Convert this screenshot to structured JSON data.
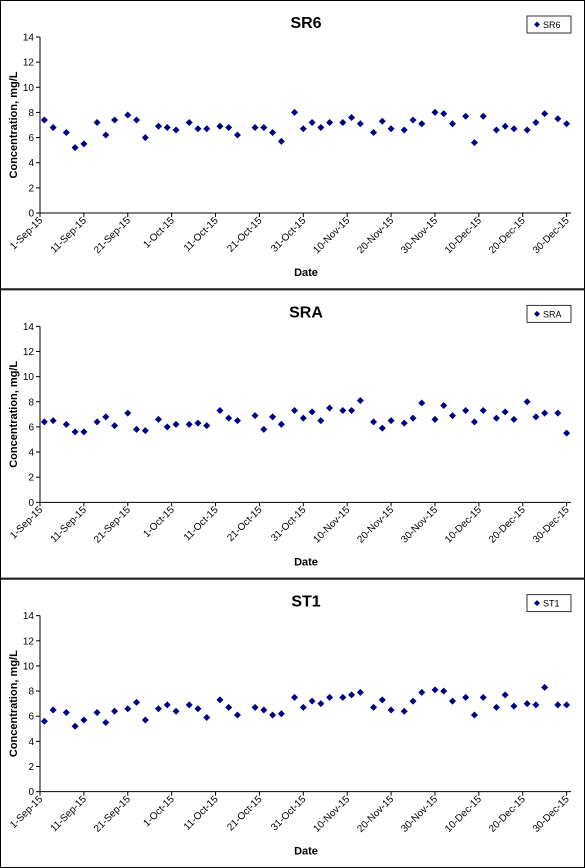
{
  "chart_data": [
    {
      "type": "scatter",
      "title": "SR6",
      "xlabel": "Date",
      "ylabel": "Concentration, mg/L",
      "x": [
        "2-Sep-15",
        "4-Sep-15",
        "7-Sep-15",
        "9-Sep-15",
        "11-Sep-15",
        "14-Sep-15",
        "16-Sep-15",
        "18-Sep-15",
        "21-Sep-15",
        "23-Sep-15",
        "25-Sep-15",
        "28-Sep-15",
        "30-Sep-15",
        "2-Oct-15",
        "5-Oct-15",
        "7-Oct-15",
        "9-Oct-15",
        "12-Oct-15",
        "14-Oct-15",
        "16-Oct-15",
        "20-Oct-15",
        "22-Oct-15",
        "24-Oct-15",
        "26-Oct-15",
        "29-Oct-15",
        "31-Oct-15",
        "2-Nov-15",
        "4-Nov-15",
        "6-Nov-15",
        "9-Nov-15",
        "11-Nov-15",
        "13-Nov-15",
        "16-Nov-15",
        "18-Nov-15",
        "20-Nov-15",
        "23-Nov-15",
        "25-Nov-15",
        "27-Nov-15",
        "30-Nov-15",
        "2-Dec-15",
        "4-Dec-15",
        "7-Dec-15",
        "9-Dec-15",
        "11-Dec-15",
        "14-Dec-15",
        "16-Dec-15",
        "18-Dec-15",
        "21-Dec-15",
        "23-Dec-15",
        "25-Dec-15",
        "28-Dec-15",
        "30-Dec-15"
      ],
      "series": [
        {
          "name": "SR6",
          "color": "#000080",
          "values": [
            7.4,
            6.8,
            6.4,
            5.2,
            5.5,
            7.2,
            6.2,
            7.4,
            7.8,
            7.4,
            6.0,
            6.9,
            6.8,
            6.6,
            7.2,
            6.7,
            6.7,
            6.9,
            6.8,
            6.2,
            6.8,
            6.8,
            6.4,
            5.7,
            8.0,
            6.7,
            7.2,
            6.8,
            7.2,
            7.2,
            7.6,
            7.1,
            6.4,
            7.3,
            6.7,
            6.6,
            7.4,
            7.1,
            8.0,
            7.9,
            7.1,
            7.7,
            5.6,
            7.7,
            6.6,
            6.9,
            6.7,
            6.6,
            7.2,
            7.9,
            7.5,
            7.1
          ]
        }
      ],
      "xlim": [
        "1-Sep-15",
        "31-Dec-15"
      ],
      "xticks": [
        "1-Sep-15",
        "11-Sep-15",
        "21-Sep-15",
        "1-Oct-15",
        "11-Oct-15",
        "21-Oct-15",
        "31-Oct-15",
        "10-Nov-15",
        "20-Nov-15",
        "30-Nov-15",
        "10-Dec-15",
        "20-Dec-15",
        "30-Dec-15"
      ],
      "ylim": [
        0,
        14
      ],
      "yticks": [
        0,
        2,
        4,
        6,
        8,
        10,
        12,
        14
      ],
      "legend": "upper right"
    },
    {
      "type": "scatter",
      "title": "SRA",
      "xlabel": "Date",
      "ylabel": "Concentration, mg/L",
      "x": [
        "2-Sep-15",
        "4-Sep-15",
        "7-Sep-15",
        "9-Sep-15",
        "11-Sep-15",
        "14-Sep-15",
        "16-Sep-15",
        "18-Sep-15",
        "21-Sep-15",
        "23-Sep-15",
        "25-Sep-15",
        "28-Sep-15",
        "30-Sep-15",
        "2-Oct-15",
        "5-Oct-15",
        "7-Oct-15",
        "9-Oct-15",
        "12-Oct-15",
        "14-Oct-15",
        "16-Oct-15",
        "20-Oct-15",
        "22-Oct-15",
        "24-Oct-15",
        "26-Oct-15",
        "29-Oct-15",
        "31-Oct-15",
        "2-Nov-15",
        "4-Nov-15",
        "6-Nov-15",
        "9-Nov-15",
        "11-Nov-15",
        "13-Nov-15",
        "16-Nov-15",
        "18-Nov-15",
        "20-Nov-15",
        "23-Nov-15",
        "25-Nov-15",
        "27-Nov-15",
        "30-Nov-15",
        "2-Dec-15",
        "4-Dec-15",
        "7-Dec-15",
        "9-Dec-15",
        "11-Dec-15",
        "14-Dec-15",
        "16-Dec-15",
        "18-Dec-15",
        "21-Dec-15",
        "23-Dec-15",
        "25-Dec-15",
        "28-Dec-15",
        "30-Dec-15"
      ],
      "series": [
        {
          "name": "SRA",
          "color": "#000080",
          "values": [
            6.4,
            6.5,
            6.2,
            5.6,
            5.6,
            6.4,
            6.8,
            6.1,
            7.1,
            5.8,
            5.7,
            6.6,
            6.0,
            6.2,
            6.2,
            6.3,
            6.1,
            7.3,
            6.7,
            6.5,
            6.9,
            5.8,
            6.8,
            6.2,
            7.3,
            6.7,
            7.2,
            6.5,
            7.5,
            7.3,
            7.3,
            8.1,
            6.4,
            5.9,
            6.5,
            6.3,
            6.7,
            7.9,
            6.6,
            7.7,
            6.9,
            7.3,
            6.4,
            7.3,
            6.7,
            7.2,
            6.6,
            8.0,
            6.8,
            7.1,
            7.1,
            5.5
          ]
        }
      ],
      "xlim": [
        "1-Sep-15",
        "31-Dec-15"
      ],
      "xticks": [
        "1-Sep-15",
        "11-Sep-15",
        "21-Sep-15",
        "1-Oct-15",
        "11-Oct-15",
        "21-Oct-15",
        "31-Oct-15",
        "10-Nov-15",
        "20-Nov-15",
        "30-Nov-15",
        "10-Dec-15",
        "20-Dec-15",
        "30-Dec-15"
      ],
      "ylim": [
        0,
        14
      ],
      "yticks": [
        0,
        2,
        4,
        6,
        8,
        10,
        12,
        14
      ],
      "legend": "upper right"
    },
    {
      "type": "scatter",
      "title": "ST1",
      "xlabel": "Date",
      "ylabel": "Concentration, mg/L",
      "x": [
        "2-Sep-15",
        "4-Sep-15",
        "7-Sep-15",
        "9-Sep-15",
        "11-Sep-15",
        "14-Sep-15",
        "16-Sep-15",
        "18-Sep-15",
        "21-Sep-15",
        "23-Sep-15",
        "25-Sep-15",
        "28-Sep-15",
        "30-Sep-15",
        "2-Oct-15",
        "5-Oct-15",
        "7-Oct-15",
        "9-Oct-15",
        "12-Oct-15",
        "14-Oct-15",
        "16-Oct-15",
        "20-Oct-15",
        "22-Oct-15",
        "24-Oct-15",
        "26-Oct-15",
        "29-Oct-15",
        "31-Oct-15",
        "2-Nov-15",
        "4-Nov-15",
        "6-Nov-15",
        "9-Nov-15",
        "11-Nov-15",
        "13-Nov-15",
        "16-Nov-15",
        "18-Nov-15",
        "20-Nov-15",
        "23-Nov-15",
        "25-Nov-15",
        "27-Nov-15",
        "30-Nov-15",
        "2-Dec-15",
        "4-Dec-15",
        "7-Dec-15",
        "9-Dec-15",
        "11-Dec-15",
        "14-Dec-15",
        "16-Dec-15",
        "18-Dec-15",
        "21-Dec-15",
        "23-Dec-15",
        "25-Dec-15",
        "28-Dec-15",
        "30-Dec-15"
      ],
      "series": [
        {
          "name": "ST1",
          "color": "#000080",
          "values": [
            5.6,
            6.5,
            6.3,
            5.2,
            5.7,
            6.3,
            5.5,
            6.4,
            6.6,
            7.1,
            5.7,
            6.6,
            6.9,
            6.4,
            6.9,
            6.6,
            5.9,
            7.3,
            6.7,
            6.1,
            6.7,
            6.5,
            6.1,
            6.2,
            7.5,
            6.7,
            7.2,
            7.0,
            7.5,
            7.5,
            7.7,
            7.9,
            6.7,
            7.3,
            6.5,
            6.4,
            7.2,
            7.9,
            8.1,
            8.0,
            7.2,
            7.5,
            6.1,
            7.5,
            6.7,
            7.7,
            6.8,
            7.0,
            6.9,
            8.3,
            6.9,
            6.9
          ]
        }
      ],
      "xlim": [
        "1-Sep-15",
        "31-Dec-15"
      ],
      "xticks": [
        "1-Sep-15",
        "11-Sep-15",
        "21-Sep-15",
        "1-Oct-15",
        "11-Oct-15",
        "21-Oct-15",
        "31-Oct-15",
        "10-Nov-15",
        "20-Nov-15",
        "30-Nov-15",
        "10-Dec-15",
        "20-Dec-15",
        "30-Dec-15"
      ],
      "ylim": [
        0,
        14
      ],
      "yticks": [
        0,
        2,
        4,
        6,
        8,
        10,
        12,
        14
      ],
      "legend": "upper right"
    }
  ]
}
